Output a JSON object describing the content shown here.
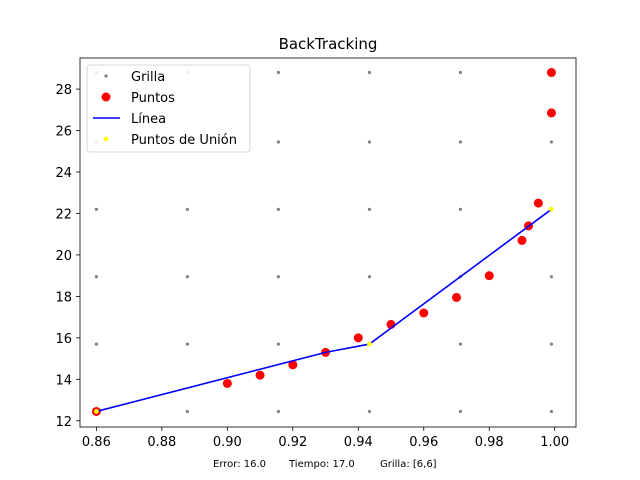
{
  "chart_data": {
    "type": "scatter",
    "title": "BackTracking",
    "xlabel": "",
    "ylabel": "",
    "xlim": [
      0.855,
      1.0065
    ],
    "ylim": [
      11.7,
      29.5
    ],
    "x_ticks": [
      0.86,
      0.88,
      0.9,
      0.92,
      0.94,
      0.96,
      0.98,
      1.0
    ],
    "x_tick_labels": [
      "0.86",
      "0.88",
      "0.90",
      "0.92",
      "0.94",
      "0.96",
      "0.98",
      "1.00"
    ],
    "y_ticks": [
      12,
      14,
      16,
      18,
      20,
      22,
      24,
      26,
      28
    ],
    "y_tick_labels": [
      "12",
      "14",
      "16",
      "18",
      "20",
      "22",
      "24",
      "26",
      "28"
    ],
    "grid": false,
    "legend_placement": "upper-left",
    "series": [
      {
        "name": "Grilla",
        "kind": "scatter",
        "color": "#808080",
        "grid_x": [
          0.86,
          0.8878,
          0.9156,
          0.9434,
          0.9712,
          0.999
        ],
        "grid_y": [
          12.45,
          15.7,
          18.95,
          22.2,
          25.45,
          28.8
        ]
      },
      {
        "name": "Puntos",
        "kind": "scatter",
        "color": "#ff0000",
        "points": [
          {
            "x": 0.86,
            "y": 12.45
          },
          {
            "x": 0.9,
            "y": 13.8
          },
          {
            "x": 0.91,
            "y": 14.2
          },
          {
            "x": 0.92,
            "y": 14.7
          },
          {
            "x": 0.93,
            "y": 15.3
          },
          {
            "x": 0.94,
            "y": 16.0
          },
          {
            "x": 0.95,
            "y": 16.65
          },
          {
            "x": 0.96,
            "y": 17.2
          },
          {
            "x": 0.97,
            "y": 17.95
          },
          {
            "x": 0.98,
            "y": 19.0
          },
          {
            "x": 0.99,
            "y": 20.7
          },
          {
            "x": 0.992,
            "y": 21.4
          },
          {
            "x": 0.995,
            "y": 22.5
          },
          {
            "x": 0.999,
            "y": 26.85
          },
          {
            "x": 0.999,
            "y": 28.8
          }
        ]
      },
      {
        "name": "Línea",
        "kind": "line",
        "color": "#0000ff",
        "points": [
          {
            "x": 0.86,
            "y": 12.45
          },
          {
            "x": 0.93,
            "y": 15.3
          },
          {
            "x": 0.9434,
            "y": 15.7
          },
          {
            "x": 0.999,
            "y": 22.2
          }
        ]
      },
      {
        "name": "Puntos de Unión",
        "kind": "scatter",
        "color": "#ffff00",
        "points": [
          {
            "x": 0.86,
            "y": 12.45
          },
          {
            "x": 0.9434,
            "y": 15.7
          },
          {
            "x": 0.999,
            "y": 22.2
          }
        ]
      }
    ],
    "footer": {
      "error": "Error: 16.0",
      "tiempo": "Tiempo: 17.0",
      "grilla": "Grilla: [6,6]"
    }
  }
}
